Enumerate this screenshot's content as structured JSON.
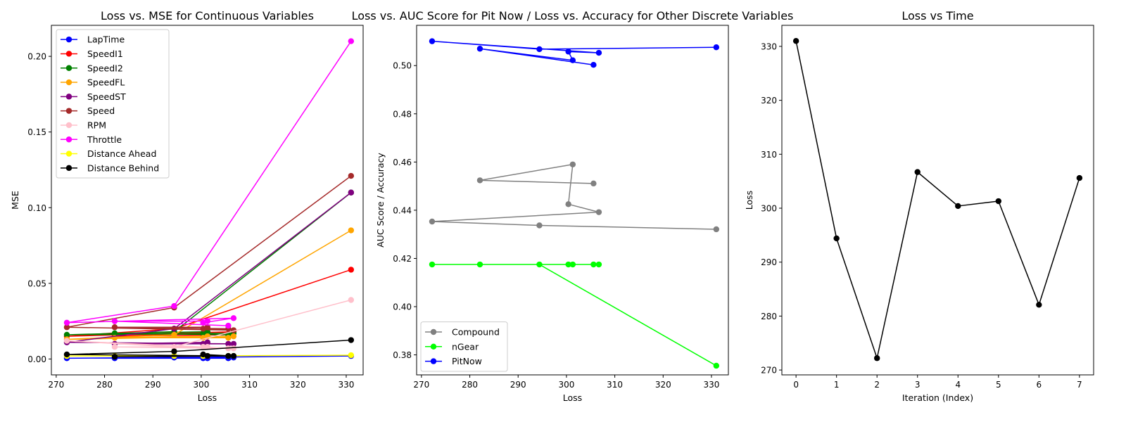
{
  "chart_data": [
    {
      "type": "line",
      "title": "Loss vs. MSE for Continuous Variables",
      "xlabel": "Loss",
      "ylabel": "MSE",
      "xlim": [
        269,
        333.5
      ],
      "ylim": [
        -0.0105,
        0.2205
      ],
      "xticks": [
        270,
        280,
        290,
        300,
        310,
        320,
        330
      ],
      "yticks": [
        0.0,
        0.05,
        0.1,
        0.15,
        0.2
      ],
      "ytick_labels": [
        "0.00",
        "0.05",
        "0.10",
        "0.15",
        "0.20"
      ],
      "grid": false,
      "legend_position": "upper-left",
      "x": [
        331.0,
        294.4,
        272.2,
        306.7,
        300.4,
        301.3,
        282.1,
        305.6
      ],
      "series": [
        {
          "name": "LapTime",
          "color": "#0000ff",
          "values": [
            0.002,
            0.001,
            0.0005,
            0.001,
            0.0005,
            0.0005,
            0.0005,
            0.0005
          ]
        },
        {
          "name": "SpeedI1",
          "color": "#ff0000",
          "values": [
            0.059,
            0.02,
            0.015,
            0.018,
            0.016,
            0.017,
            0.015,
            0.016
          ]
        },
        {
          "name": "SpeedI2",
          "color": "#008000",
          "values": [
            0.11,
            0.018,
            0.016,
            0.017,
            0.017,
            0.018,
            0.017,
            0.016
          ]
        },
        {
          "name": "SpeedFL",
          "color": "#ffa500",
          "values": [
            0.085,
            0.016,
            0.013,
            0.015,
            0.014,
            0.015,
            0.014,
            0.014
          ]
        },
        {
          "name": "SpeedST",
          "color": "#800080",
          "values": [
            0.11,
            0.02,
            0.011,
            0.01,
            0.01,
            0.011,
            0.01,
            0.01
          ]
        },
        {
          "name": "Speed",
          "color": "#a52a2a",
          "values": [
            0.121,
            0.034,
            0.021,
            0.019,
            0.02,
            0.021,
            0.021,
            0.02
          ]
        },
        {
          "name": "RPM",
          "color": "#ffc0cb",
          "values": [
            0.039,
            0.008,
            0.012,
            0.007,
            0.008,
            0.008,
            0.008,
            0.007
          ]
        },
        {
          "name": "Throttle",
          "color": "#ff00ff",
          "values": [
            0.21,
            0.035,
            0.024,
            0.027,
            0.024,
            0.025,
            0.025,
            0.022
          ]
        },
        {
          "name": "Distance Ahead",
          "color": "#ffff00",
          "values": [
            0.0025,
            0.002,
            0.002,
            0.002,
            0.002,
            0.002,
            0.002,
            0.002
          ]
        },
        {
          "name": "Distance Behind",
          "color": "#000000",
          "values": [
            0.0125,
            0.005,
            0.003,
            0.002,
            0.003,
            0.002,
            0.0015,
            0.002
          ]
        }
      ]
    },
    {
      "type": "line",
      "title": "Loss vs. AUC Score for Pit Now / Loss vs. Accuracy for Other Discrete Variables",
      "xlabel": "Loss",
      "ylabel": "AUC Score / Accuracy",
      "xlim": [
        269,
        333.5
      ],
      "ylim": [
        0.3717,
        0.5167
      ],
      "xticks": [
        270,
        280,
        290,
        300,
        310,
        320,
        330
      ],
      "yticks": [
        0.38,
        0.4,
        0.42,
        0.44,
        0.46,
        0.48,
        0.5
      ],
      "ytick_labels": [
        "0.38",
        "0.40",
        "0.42",
        "0.44",
        "0.46",
        "0.48",
        "0.50"
      ],
      "grid": false,
      "legend_position": "lower-left",
      "x": [
        331.0,
        294.4,
        272.2,
        306.7,
        300.4,
        301.3,
        282.1,
        305.6
      ],
      "series": [
        {
          "name": "Compound",
          "color": "#808080",
          "values": [
            0.4321,
            0.4337,
            0.4353,
            0.4392,
            0.4425,
            0.459,
            0.4524,
            0.4511
          ]
        },
        {
          "name": "nGear",
          "color": "#00ff00",
          "values": [
            0.3755,
            0.4175,
            0.4175,
            0.4175,
            0.4175,
            0.4175,
            0.4175,
            0.4175
          ]
        },
        {
          "name": "PitNow",
          "color": "#0000ff",
          "values": [
            0.5076,
            0.5068,
            0.5101,
            0.5053,
            0.5058,
            0.5022,
            0.507,
            0.5003
          ]
        }
      ]
    },
    {
      "type": "line",
      "title": "Loss vs Time",
      "xlabel": "Iteration (Index)",
      "ylabel": "Loss",
      "xlim": [
        -0.35,
        7.35
      ],
      "ylim": [
        269.1,
        333.9
      ],
      "xticks": [
        0,
        1,
        2,
        3,
        4,
        5,
        6,
        7
      ],
      "yticks": [
        270,
        280,
        290,
        300,
        310,
        320,
        330
      ],
      "grid": false,
      "x": [
        0,
        1,
        2,
        3,
        4,
        5,
        6,
        7
      ],
      "series": [
        {
          "color": "#000000",
          "values": [
            331.0,
            294.4,
            272.2,
            306.7,
            300.4,
            301.3,
            282.1,
            305.6
          ]
        }
      ]
    }
  ]
}
